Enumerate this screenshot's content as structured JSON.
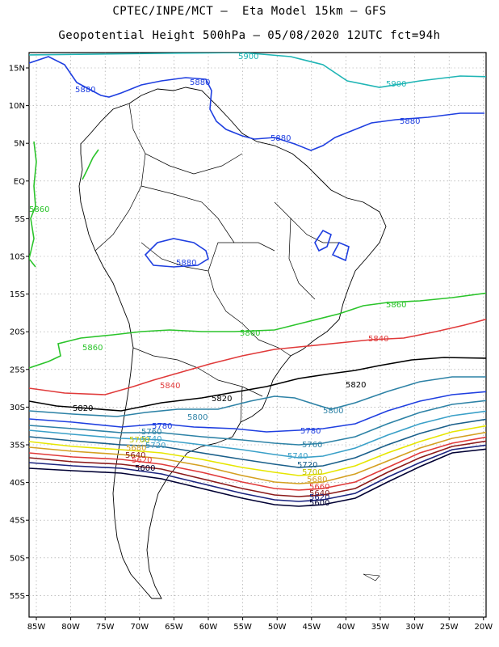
{
  "header": {
    "line1": "CPTEC/INPE/MCT –  Eta Model 15km – GFS",
    "line2": "Geopotential Height 500hPa – 05/08/2020 12UTC fct=94h"
  },
  "axes": {
    "lat_labels": [
      "15N",
      "10N",
      "5N",
      "EQ",
      "5S",
      "10S",
      "15S",
      "20S",
      "25S",
      "30S",
      "35S",
      "40S",
      "45S",
      "50S",
      "55S"
    ],
    "lon_labels": [
      "85W",
      "80W",
      "75W",
      "70W",
      "65W",
      "60W",
      "55W",
      "50W",
      "45W",
      "40W",
      "35W",
      "30W",
      "25W",
      "20W"
    ]
  },
  "colors": {
    "c5900": "#1fb5b5",
    "c5880": "#1f3fe0",
    "c5860": "#2bc42b",
    "c5840": "#e03a3a",
    "c5820": "#000000",
    "c5800": "#2d82a6",
    "c5780": "#1f3fe0",
    "c5760": "#2d82a6",
    "c5740": "#3aa0c8",
    "c5720": "#1a5f8a",
    "c5700": "#e6e600",
    "c5680": "#d4a020",
    "c5660": "#e03a3a",
    "c5640": "#8b1a1a",
    "c5620": "#1a237e",
    "c5600": "#000033"
  },
  "labels": {
    "l5900a": "5900",
    "l5900b": "5900",
    "l5880a": "5880",
    "l5880b": "5880",
    "l5880c": "5880",
    "l5880d": "5880",
    "l5880e": "5880",
    "l5860a": "5860",
    "l5860b": "5860",
    "l5860c": "5860",
    "l5860d": "5860",
    "l5840a": "5840",
    "l5840b": "5840",
    "l5820a": "5820",
    "l5820b": "5820",
    "l5820c": "5820",
    "l5800a": "5800",
    "l5800b": "5800",
    "l5780a": "5780",
    "l5780b": "5780",
    "l5760a": "5760",
    "l5760b": "5760",
    "l5740a": "5740",
    "l5740b": "5740",
    "l5720a": "5720",
    "l5720b": "5720",
    "l5700a": "5700",
    "l5700b": "5700",
    "l5680a": "5680",
    "l5680b": "5680",
    "l5660a": "5660",
    "l5640a": "5640",
    "l5640b": "5640",
    "l5620a": "5620",
    "l5620b": "5620",
    "l5600a": "5600",
    "l5600b": "5600"
  }
}
